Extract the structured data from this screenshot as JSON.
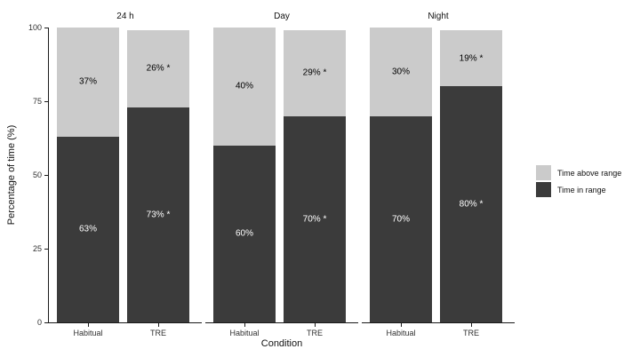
{
  "chart_data": {
    "type": "bar",
    "stacked": true,
    "xlabel": "Condition",
    "ylabel": "Percentage of time (%)",
    "ylim": [
      0,
      100
    ],
    "yticks": [
      "0",
      "25",
      "50",
      "75",
      "100"
    ],
    "grid": false,
    "legend_position": "right",
    "series": [
      {
        "name": "Time above range",
        "key": "above_range",
        "color": "#cbcbcb",
        "label_color": "#000000"
      },
      {
        "name": "Time in range",
        "key": "in_range",
        "color": "#3b3b3b",
        "label_color": "#ffffff"
      }
    ],
    "facets": [
      {
        "title": "24 h",
        "categories": [
          "Habitual",
          "TRE"
        ],
        "bars": [
          {
            "category": "Habitual",
            "above_range": 37,
            "in_range": 63,
            "above_label": "37%",
            "in_label": "63%"
          },
          {
            "category": "TRE",
            "above_range": 26,
            "in_range": 73,
            "above_label": "26% *",
            "in_label": "73% *"
          }
        ]
      },
      {
        "title": "Day",
        "categories": [
          "Habitual",
          "TRE"
        ],
        "bars": [
          {
            "category": "Habitual",
            "above_range": 40,
            "in_range": 60,
            "above_label": "40%",
            "in_label": "60%"
          },
          {
            "category": "TRE",
            "above_range": 29,
            "in_range": 70,
            "above_label": "29% *",
            "in_label": "70% *"
          }
        ]
      },
      {
        "title": "Night",
        "categories": [
          "Habitual",
          "TRE"
        ],
        "bars": [
          {
            "category": "Habitual",
            "above_range": 30,
            "in_range": 70,
            "above_label": "30%",
            "in_label": "70%"
          },
          {
            "category": "TRE",
            "above_range": 19,
            "in_range": 80,
            "above_label": "19% *",
            "in_label": "80% *"
          }
        ]
      }
    ]
  }
}
